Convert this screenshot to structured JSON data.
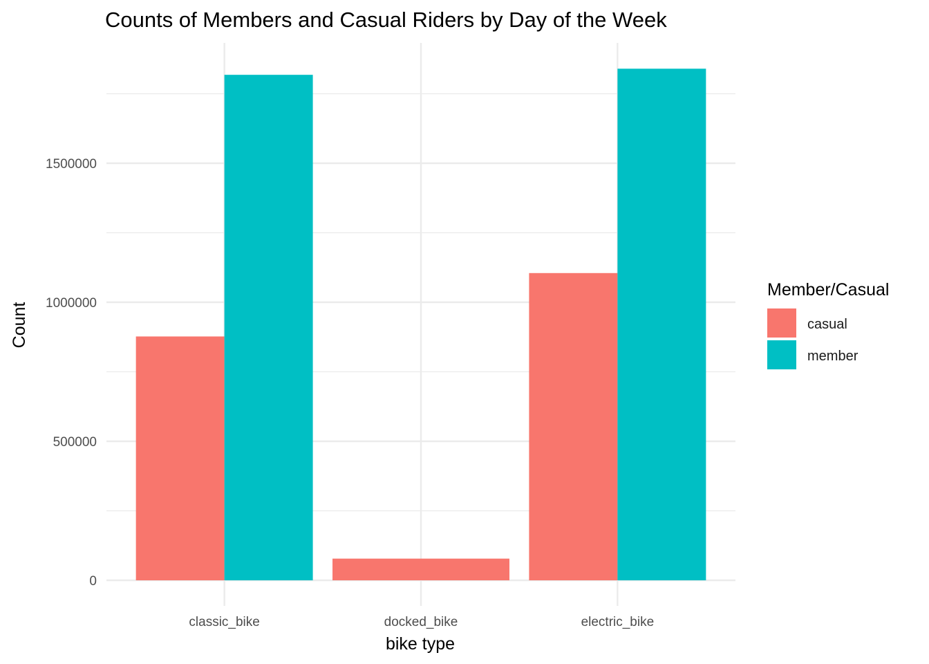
{
  "chart_data": {
    "type": "bar",
    "title": "Counts of Members and Casual Riders by Day of the Week",
    "xlabel": "bike type",
    "ylabel": "Count",
    "categories": [
      "classic_bike",
      "docked_bike",
      "electric_bike"
    ],
    "series": [
      {
        "name": "casual",
        "color": "#F8766D",
        "values": [
          877000,
          78000,
          1105000
        ]
      },
      {
        "name": "member",
        "color": "#00BFC4",
        "values": [
          1818000,
          null,
          1840000
        ]
      }
    ],
    "ylim": [
      0,
      1870000
    ],
    "yticks": [
      0,
      500000,
      1000000,
      1500000
    ],
    "ytick_labels": [
      "0",
      "500000",
      "1000000",
      "1500000"
    ],
    "grid": true,
    "legend": {
      "title": "Member/Casual",
      "position": "right"
    }
  }
}
